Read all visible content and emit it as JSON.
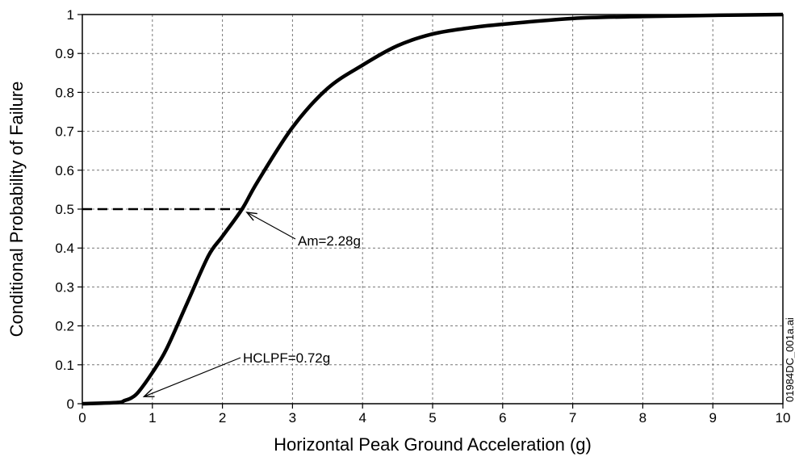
{
  "chart_data": {
    "type": "line",
    "title": "",
    "xlabel": "Horizontal Peak Ground Acceleration (g)",
    "ylabel": "Conditional Probability of Failure",
    "xlim": [
      0,
      10
    ],
    "ylim": [
      0,
      1
    ],
    "x_ticks": [
      "0",
      "1",
      "2",
      "3",
      "4",
      "5",
      "6",
      "7",
      "8",
      "9",
      "10"
    ],
    "y_ticks": [
      "0",
      "0.1",
      "0.2",
      "0.3",
      "0.4",
      "0.5",
      "0.6",
      "0.7",
      "0.8",
      "0.9",
      "1"
    ],
    "grid": true,
    "series": [
      {
        "x": [
          0,
          0.5,
          0.6,
          0.7,
          0.8,
          1.0,
          1.2,
          1.5,
          1.8,
          2.0,
          2.28,
          2.5,
          3.0,
          3.5,
          4.0,
          4.5,
          5.0,
          5.5,
          6.0,
          7.0,
          8.0,
          9.0,
          10.0
        ],
        "y": [
          0,
          0.003,
          0.008,
          0.015,
          0.03,
          0.08,
          0.14,
          0.26,
          0.38,
          0.43,
          0.5,
          0.57,
          0.71,
          0.81,
          0.87,
          0.92,
          0.95,
          0.965,
          0.975,
          0.99,
          0.995,
          0.998,
          1.0
        ]
      }
    ],
    "reference_line": {
      "y": 0.5,
      "x_from": 0,
      "x_to": 2.28,
      "style": "dashed"
    },
    "annotations": [
      {
        "text": "Am=2.28g",
        "point_x": 2.28,
        "point_y": 0.5
      },
      {
        "text": "HCLPF=0.72g",
        "point_x": 0.72,
        "point_y": 0.01
      }
    ],
    "file_id": "01984DC_001a.ai"
  }
}
